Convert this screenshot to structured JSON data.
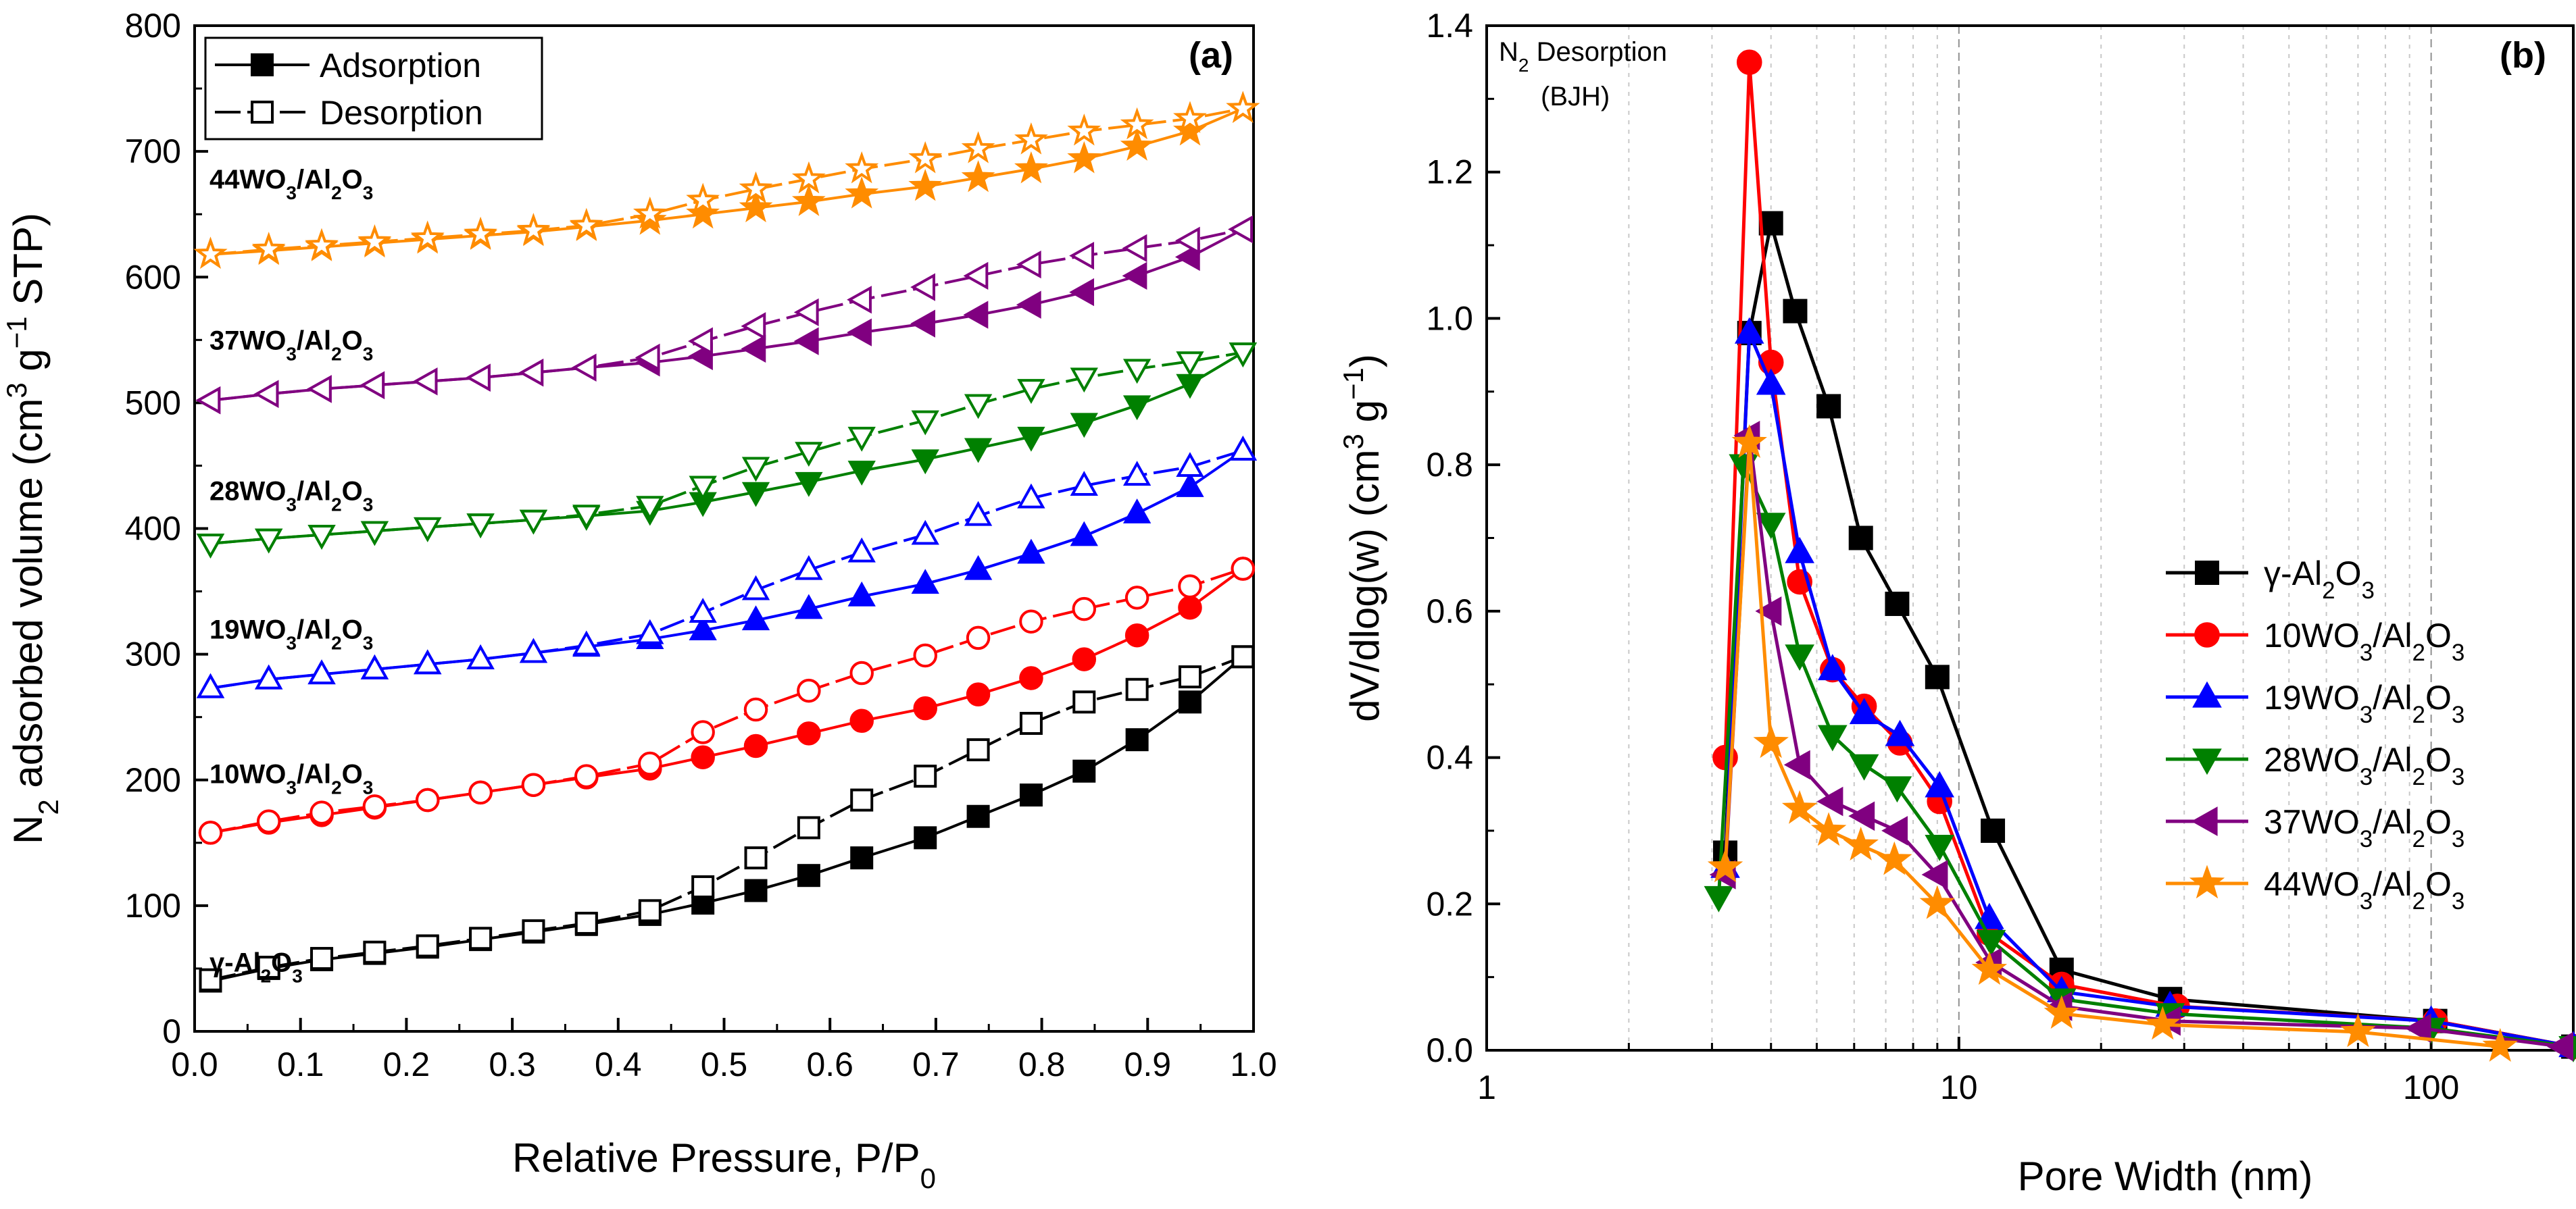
{
  "chart_data": [
    {
      "panel": "(a)",
      "type": "line",
      "xlabel": "Relative Pressure, P/P",
      "xlabel_sub": "0",
      "ylabel_parts": [
        "N",
        "2",
        " adsorbed volume (cm",
        "3",
        " g",
        "−1",
        " STP)"
      ],
      "xlim": [
        0.0,
        1.0
      ],
      "ylim": [
        0,
        800
      ],
      "xticks": [
        "0.0",
        "0.1",
        "0.2",
        "0.3",
        "0.4",
        "0.5",
        "0.6",
        "0.7",
        "0.8",
        "0.9",
        "1.0"
      ],
      "yticks": [
        "0",
        "100",
        "200",
        "300",
        "400",
        "500",
        "600",
        "700",
        "800"
      ],
      "legend": [
        {
          "label": "Adsorption",
          "marker": "filled-square"
        },
        {
          "label": "Desorption",
          "marker": "open-square"
        }
      ],
      "sample_labels": [
        {
          "parts": [
            "γ-Al",
            "2",
            "O",
            "3"
          ],
          "y": 55
        },
        {
          "parts": [
            "10WO",
            "3",
            "/Al",
            "2",
            "O",
            "3"
          ],
          "y": 205
        },
        {
          "parts": [
            "19WO",
            "3",
            "/Al",
            "2",
            "O",
            "3"
          ],
          "y": 320
        },
        {
          "parts": [
            "28WO",
            "3",
            "/Al",
            "2",
            "O",
            "3"
          ],
          "y": 430
        },
        {
          "parts": [
            "37WO",
            "3",
            "/Al",
            "2",
            "O",
            "3"
          ],
          "y": 550
        },
        {
          "parts": [
            "44WO",
            "3",
            "/Al",
            "2",
            "O",
            "3"
          ],
          "y": 678
        }
      ],
      "series": [
        {
          "name": "γ-Al2O3",
          "color": "#000000",
          "marker": "square",
          "adsorption": {
            "x": [
              0.015,
              0.07,
              0.12,
              0.17,
              0.22,
              0.27,
              0.32,
              0.37,
              0.43,
              0.48,
              0.53,
              0.58,
              0.63,
              0.69,
              0.74,
              0.79,
              0.84,
              0.89,
              0.94,
              0.99
            ],
            "y": [
              40,
              50,
              57,
              62,
              67,
              73,
              79,
              85,
              93,
              102,
              112,
              124,
              138,
              154,
              171,
              188,
              207,
              232,
              262,
              298
            ]
          },
          "desorption": {
            "x": [
              0.015,
              0.07,
              0.12,
              0.17,
              0.22,
              0.27,
              0.32,
              0.37,
              0.43,
              0.48,
              0.53,
              0.58,
              0.63,
              0.69,
              0.74,
              0.79,
              0.84,
              0.89,
              0.94,
              0.99
            ],
            "y": [
              41,
              51,
              58,
              63,
              68,
              74,
              80,
              86,
              96,
              115,
              138,
              162,
              184,
              203,
              224,
              245,
              262,
              272,
              282,
              298
            ]
          }
        },
        {
          "name": "10WO3/Al2O3",
          "color": "#ff0000",
          "marker": "circle",
          "adsorption": {
            "x": [
              0.015,
              0.07,
              0.12,
              0.17,
              0.22,
              0.27,
              0.32,
              0.37,
              0.43,
              0.48,
              0.53,
              0.58,
              0.63,
              0.69,
              0.74,
              0.79,
              0.84,
              0.89,
              0.94,
              0.99
            ],
            "y": [
              158,
              166,
              172,
              178,
              184,
              190,
              196,
              202,
              209,
              218,
              227,
              237,
              247,
              257,
              268,
              281,
              296,
              315,
              337,
              368
            ]
          },
          "desorption": {
            "x": [
              0.015,
              0.07,
              0.12,
              0.17,
              0.22,
              0.27,
              0.32,
              0.37,
              0.43,
              0.48,
              0.53,
              0.58,
              0.63,
              0.69,
              0.74,
              0.79,
              0.84,
              0.89,
              0.94,
              0.99
            ],
            "y": [
              158,
              167,
              174,
              179,
              184,
              190,
              196,
              203,
              213,
              238,
              256,
              271,
              285,
              299,
              313,
              326,
              336,
              345,
              354,
              368
            ]
          }
        },
        {
          "name": "19WO3/Al2O3",
          "color": "#0000ff",
          "marker": "triangle-up",
          "adsorption": {
            "x": [
              0.015,
              0.07,
              0.12,
              0.17,
              0.22,
              0.27,
              0.32,
              0.37,
              0.43,
              0.48,
              0.53,
              0.58,
              0.63,
              0.69,
              0.74,
              0.79,
              0.84,
              0.89,
              0.94,
              0.99
            ],
            "y": [
              273,
              280,
              284,
              288,
              292,
              296,
              301,
              306,
              312,
              319,
              327,
              336,
              346,
              356,
              367,
              380,
              394,
              412,
              433,
              462
            ]
          },
          "desorption": {
            "x": [
              0.015,
              0.07,
              0.12,
              0.17,
              0.22,
              0.27,
              0.32,
              0.37,
              0.43,
              0.48,
              0.53,
              0.58,
              0.63,
              0.69,
              0.74,
              0.79,
              0.84,
              0.89,
              0.94,
              0.99
            ],
            "y": [
              273,
              280,
              284,
              288,
              292,
              296,
              301,
              307,
              316,
              333,
              351,
              367,
              381,
              395,
              410,
              424,
              434,
              442,
              449,
              462
            ]
          }
        },
        {
          "name": "28WO3/Al2O3",
          "color": "#008000",
          "marker": "triangle-down",
          "adsorption": {
            "x": [
              0.015,
              0.07,
              0.12,
              0.17,
              0.22,
              0.27,
              0.32,
              0.37,
              0.43,
              0.48,
              0.53,
              0.58,
              0.63,
              0.69,
              0.74,
              0.79,
              0.84,
              0.89,
              0.94,
              0.99
            ],
            "y": [
              388,
              392,
              395,
              398,
              401,
              404,
              407,
              410,
              414,
              421,
              429,
              437,
              446,
              455,
              464,
              473,
              484,
              498,
              515,
              540
            ]
          },
          "desorption": {
            "x": [
              0.015,
              0.07,
              0.12,
              0.17,
              0.22,
              0.27,
              0.32,
              0.37,
              0.43,
              0.48,
              0.53,
              0.58,
              0.63,
              0.69,
              0.74,
              0.79,
              0.84,
              0.89,
              0.94,
              0.99
            ],
            "y": [
              388,
              392,
              395,
              398,
              401,
              404,
              407,
              411,
              418,
              434,
              449,
              461,
              473,
              486,
              499,
              511,
              520,
              527,
              533,
              540
            ]
          }
        },
        {
          "name": "37WO3/Al2O3",
          "color": "#800080",
          "marker": "triangle-left",
          "adsorption": {
            "x": [
              0.015,
              0.07,
              0.12,
              0.17,
              0.22,
              0.27,
              0.32,
              0.37,
              0.43,
              0.48,
              0.53,
              0.58,
              0.63,
              0.69,
              0.74,
              0.79,
              0.84,
              0.89,
              0.94,
              0.99
            ],
            "y": [
              502,
              507,
              511,
              514,
              517,
              520,
              524,
              528,
              532,
              537,
              543,
              549,
              556,
              563,
              570,
              578,
              588,
              601,
              616,
              638
            ]
          },
          "desorption": {
            "x": [
              0.015,
              0.07,
              0.12,
              0.17,
              0.22,
              0.27,
              0.32,
              0.37,
              0.43,
              0.48,
              0.53,
              0.58,
              0.63,
              0.69,
              0.74,
              0.79,
              0.84,
              0.89,
              0.94,
              0.99
            ],
            "y": [
              502,
              507,
              511,
              514,
              517,
              520,
              524,
              528,
              536,
              549,
              561,
              572,
              582,
              592,
              601,
              610,
              617,
              623,
              629,
              638
            ]
          }
        },
        {
          "name": "44WO3/Al2O3",
          "color": "#ff8c00",
          "marker": "star",
          "adsorption": {
            "x": [
              0.015,
              0.07,
              0.12,
              0.17,
              0.22,
              0.27,
              0.32,
              0.37,
              0.43,
              0.48,
              0.53,
              0.58,
              0.63,
              0.69,
              0.74,
              0.79,
              0.84,
              0.89,
              0.94,
              0.99
            ],
            "y": [
              618,
              621,
              624,
              627,
              630,
              633,
              636,
              640,
              645,
              650,
              655,
              660,
              666,
              672,
              679,
              686,
              694,
              704,
              716,
              734
            ]
          },
          "desorption": {
            "x": [
              0.015,
              0.07,
              0.12,
              0.17,
              0.22,
              0.27,
              0.32,
              0.37,
              0.43,
              0.48,
              0.53,
              0.58,
              0.63,
              0.69,
              0.74,
              0.79,
              0.84,
              0.89,
              0.94,
              0.99
            ],
            "y": [
              618,
              622,
              625,
              628,
              631,
              634,
              637,
              641,
              650,
              661,
              670,
              678,
              686,
              694,
              702,
              709,
              716,
              721,
              726,
              734
            ]
          }
        }
      ]
    },
    {
      "panel": "(b)",
      "type": "line",
      "xscale": "log",
      "xlabel": "Pore Width (nm)",
      "ylabel_parts": [
        "dV/dlog(w) (cm",
        "3",
        " g",
        "−1",
        ")"
      ],
      "xlim": [
        1,
        200
      ],
      "ylim": [
        0.0,
        1.4
      ],
      "xticks": [
        "1",
        "10",
        "100"
      ],
      "yticks": [
        "0.0",
        "0.2",
        "0.4",
        "0.6",
        "0.8",
        "1.0",
        "1.2",
        "1.4"
      ],
      "annotation_parts": [
        "N",
        "2",
        " Desorption"
      ],
      "annotation_line2": "(BJH)",
      "grid": "vertical minor dashed",
      "legend_position": "lower-right",
      "series": [
        {
          "name_parts": [
            "γ-Al",
            "2",
            "O",
            "3"
          ],
          "color": "#000000",
          "marker": "square",
          "x": [
            3.2,
            3.6,
            4.0,
            4.5,
            5.3,
            6.2,
            7.4,
            9.0,
            11.8,
            16.5,
            28,
            102,
            200
          ],
          "y": [
            0.27,
            0.98,
            1.13,
            1.01,
            0.88,
            0.7,
            0.61,
            0.51,
            0.3,
            0.11,
            0.07,
            0.04,
            0.005
          ]
        },
        {
          "name_parts": [
            "10WO",
            "3",
            "/Al",
            "2",
            "O",
            "3"
          ],
          "color": "#ff0000",
          "marker": "circle",
          "x": [
            3.2,
            3.6,
            4.0,
            4.6,
            5.4,
            6.3,
            7.5,
            9.1,
            11.6,
            16.5,
            29,
            102,
            200
          ],
          "y": [
            0.4,
            1.35,
            0.94,
            0.64,
            0.52,
            0.47,
            0.42,
            0.34,
            0.16,
            0.09,
            0.06,
            0.04,
            0.005
          ]
        },
        {
          "name_parts": [
            "19WO",
            "3",
            "/Al",
            "2",
            "O",
            "3"
          ],
          "color": "#0000ff",
          "marker": "triangle-up",
          "x": [
            3.2,
            3.6,
            4.0,
            4.6,
            5.4,
            6.3,
            7.5,
            9.1,
            11.6,
            16.5,
            28,
            100,
            200
          ],
          "y": [
            0.25,
            0.98,
            0.91,
            0.68,
            0.52,
            0.46,
            0.43,
            0.36,
            0.18,
            0.08,
            0.06,
            0.04,
            0.005
          ]
        },
        {
          "name_parts": [
            "28WO",
            "3",
            "/Al",
            "2",
            "O",
            "3"
          ],
          "color": "#008000",
          "marker": "triangle-down",
          "x": [
            3.1,
            3.5,
            4.0,
            4.6,
            5.4,
            6.3,
            7.4,
            9.1,
            11.7,
            16.5,
            28,
            100,
            200
          ],
          "y": [
            0.21,
            0.8,
            0.72,
            0.54,
            0.43,
            0.39,
            0.36,
            0.28,
            0.15,
            0.07,
            0.05,
            0.03,
            0.005
          ]
        },
        {
          "name_parts": [
            "37WO",
            "3",
            "/Al",
            "2",
            "O",
            "3"
          ],
          "color": "#800080",
          "marker": "triangle-left",
          "x": [
            3.2,
            3.6,
            4.0,
            4.6,
            5.4,
            6.3,
            7.4,
            9.0,
            11.7,
            16.5,
            28,
            95,
            190
          ],
          "y": [
            0.24,
            0.84,
            0.6,
            0.39,
            0.34,
            0.32,
            0.3,
            0.24,
            0.12,
            0.06,
            0.04,
            0.03,
            0.005
          ]
        },
        {
          "name_parts": [
            "44WO",
            "3",
            "/Al",
            "2",
            "O",
            "3"
          ],
          "color": "#ff8c00",
          "marker": "star",
          "x": [
            3.2,
            3.6,
            4.0,
            4.6,
            5.3,
            6.2,
            7.3,
            9.0,
            11.6,
            16.5,
            27,
            70,
            140
          ],
          "y": [
            0.25,
            0.83,
            0.42,
            0.33,
            0.3,
            0.28,
            0.26,
            0.2,
            0.11,
            0.05,
            0.035,
            0.025,
            0.005
          ]
        }
      ]
    }
  ]
}
